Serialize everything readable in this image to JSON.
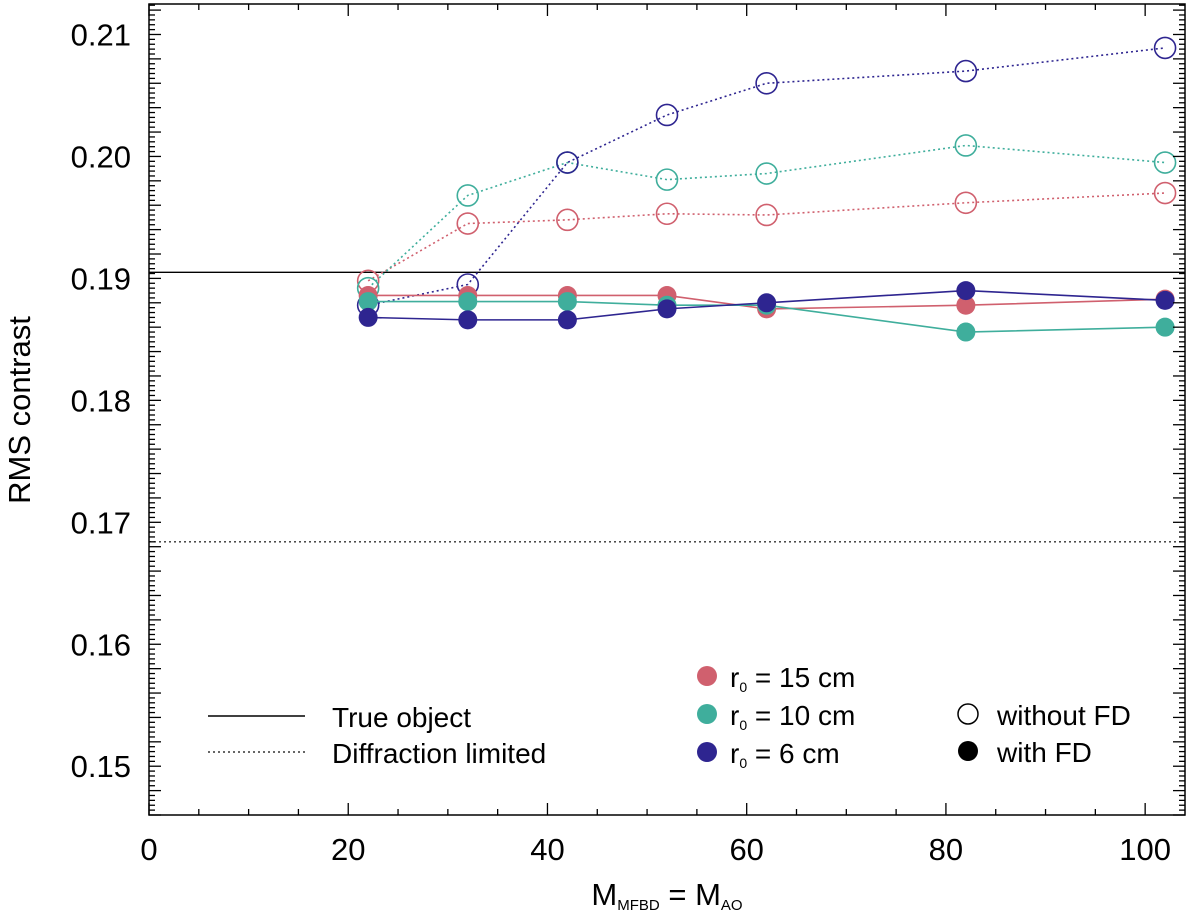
{
  "chart_data": {
    "type": "line",
    "xlabel": {
      "main": "M",
      "sub1": "MFBD",
      "mid": " = M",
      "sub2": "AO"
    },
    "ylabel": "RMS contrast",
    "xlim": [
      0,
      104
    ],
    "ylim": [
      0.146,
      0.2125
    ],
    "xticks": [
      0,
      20,
      40,
      60,
      80,
      100
    ],
    "xtick_labels": [
      "0",
      "20",
      "40",
      "60",
      "80",
      "100"
    ],
    "yticks": [
      0.15,
      0.16,
      0.17,
      0.18,
      0.19,
      0.2,
      0.21
    ],
    "ytick_labels": [
      "0.15",
      "0.16",
      "0.17",
      "0.18",
      "0.19",
      "0.20",
      "0.21"
    ],
    "x": [
      22,
      32,
      42,
      52,
      62,
      82,
      102
    ],
    "reference_lines": [
      {
        "name": "True object",
        "y": 0.1905,
        "style": "solid"
      },
      {
        "name": "Diffraction limited",
        "y": 0.1684,
        "style": "dotted"
      }
    ],
    "series": [
      {
        "name": "r0 = 15 cm",
        "variant": "without FD",
        "color": "#d0606e",
        "style": "dotted",
        "marker": "open",
        "values": [
          0.1898,
          0.1945,
          0.1948,
          0.1953,
          0.1952,
          0.1962,
          0.197
        ]
      },
      {
        "name": "r0 = 10 cm",
        "variant": "without FD",
        "color": "#3fae9c",
        "style": "dotted",
        "marker": "open",
        "values": [
          0.1892,
          0.1968,
          0.1995,
          0.1981,
          0.1986,
          0.2009,
          0.1995
        ]
      },
      {
        "name": "r0 = 6 cm",
        "variant": "without FD",
        "color": "#2e2590",
        "style": "dotted",
        "marker": "open",
        "values": [
          0.1878,
          0.1895,
          0.1995,
          0.2034,
          0.206,
          0.207,
          0.2089
        ]
      },
      {
        "name": "r0 = 15 cm",
        "variant": "with FD",
        "color": "#d0606e",
        "style": "solid",
        "marker": "filled",
        "values": [
          0.1886,
          0.1886,
          0.1886,
          0.1886,
          0.1875,
          0.1878,
          0.1883
        ]
      },
      {
        "name": "r0 = 10 cm",
        "variant": "with FD",
        "color": "#3fae9c",
        "style": "solid",
        "marker": "filled",
        "values": [
          0.1881,
          0.1881,
          0.1881,
          0.1878,
          0.1878,
          0.1856,
          0.186
        ]
      },
      {
        "name": "r0 = 6 cm",
        "variant": "with FD",
        "color": "#2e2590",
        "style": "solid",
        "marker": "filled",
        "values": [
          0.1868,
          0.1866,
          0.1866,
          0.1875,
          0.188,
          0.189,
          0.1882
        ]
      }
    ],
    "legend": {
      "lines": [
        {
          "label": "True object",
          "style": "solid"
        },
        {
          "label": "Diffraction limited",
          "style": "dotted"
        }
      ],
      "colors": [
        {
          "r": "r",
          "sub": "0",
          "rest": " = 15 cm",
          "color": "#d0606e"
        },
        {
          "r": "r",
          "sub": "0",
          "rest": " = 10 cm",
          "color": "#3fae9c"
        },
        {
          "r": "r",
          "sub": "0",
          "rest": " = 6 cm",
          "color": "#2e2590"
        }
      ],
      "markers": [
        {
          "label": "without FD",
          "fill": "open"
        },
        {
          "label": "with FD",
          "fill": "filled"
        }
      ]
    }
  }
}
